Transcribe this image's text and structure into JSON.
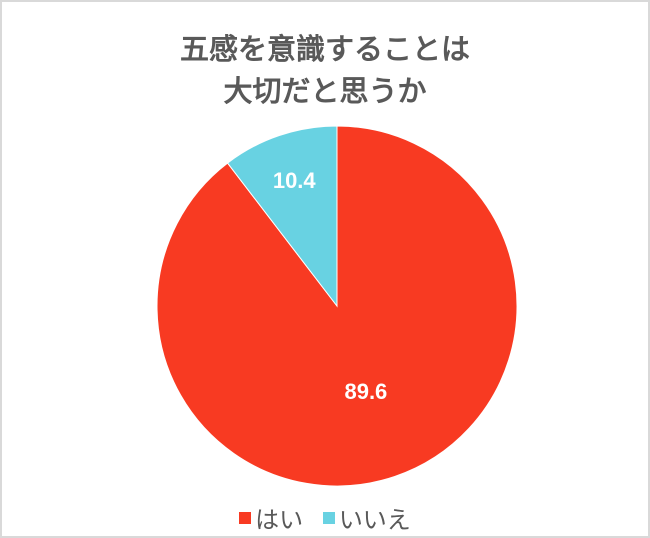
{
  "chart_data": {
    "type": "pie",
    "title_lines": [
      "五感を意識することは",
      "大切だと思うか"
    ],
    "categories": [
      "はい",
      "いいえ"
    ],
    "values": [
      89.6,
      10.4
    ],
    "data_labels": [
      "89.6",
      "10.4"
    ],
    "colors": [
      "#F83A22",
      "#68D2E2"
    ],
    "start_angle": "top, clockwise",
    "legend": "bottom"
  }
}
